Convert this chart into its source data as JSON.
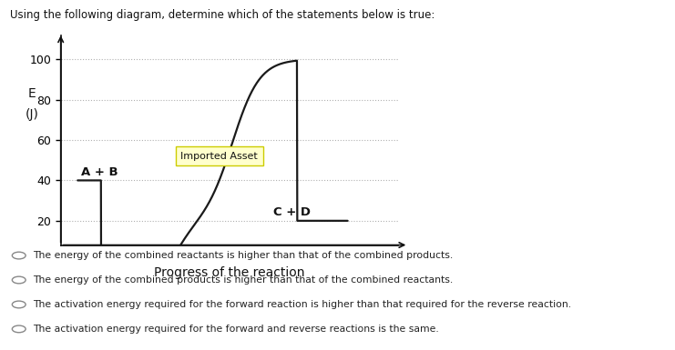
{
  "title": "Using the following diagram, determine which of the statements below is true:",
  "xlabel": "Progress of the reaction",
  "ylabel_e": "E",
  "ylabel_j": "(J)",
  "yticks": [
    20,
    40,
    60,
    80,
    100
  ],
  "ylim": [
    8,
    112
  ],
  "xlim": [
    0,
    10
  ],
  "reactant_label": "A + B",
  "product_label": "C + D",
  "imported_asset_label": "Imported Asset",
  "reactant_energy": 40,
  "product_energy": 20,
  "peak_energy": 100,
  "curve_color": "#1a1a1a",
  "grid_color": "#b0b0b0",
  "bg_color": "#ffffff",
  "box_facecolor": "#ffffcc",
  "box_edgecolor": "#cccc00",
  "options": [
    "The energy of the combined reactants is higher than that of the combined products.",
    "The energy of the combined products is higher than that of the combined reactants.",
    "The activation energy required for the forward reaction is higher than that required for the reverse reaction.",
    "The activation energy required for the forward and reverse reactions is the same."
  ]
}
